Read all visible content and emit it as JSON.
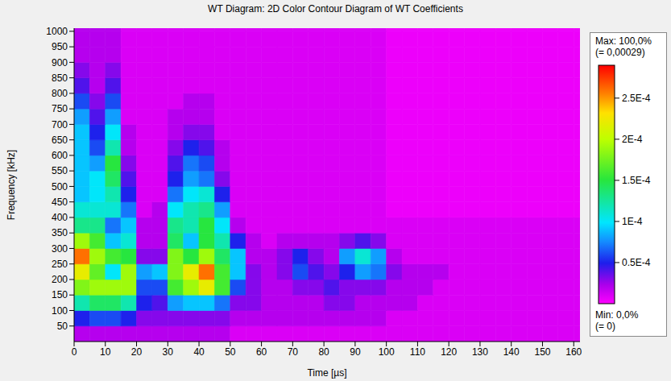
{
  "chart_data": {
    "type": "heatmap",
    "title": "WT Diagram: 2D Color Contour Diagram of WT Coefficients",
    "x_label": "Time [µs]",
    "y_label": "Frequency [kHz]",
    "xlim": [
      0,
      162
    ],
    "ylim": [
      0,
      1010
    ],
    "xticks": [
      0,
      10,
      20,
      30,
      40,
      50,
      60,
      70,
      80,
      90,
      100,
      110,
      120,
      130,
      140,
      150,
      160
    ],
    "yticks": [
      50,
      100,
      150,
      200,
      250,
      300,
      350,
      400,
      450,
      500,
      550,
      600,
      650,
      700,
      750,
      800,
      850,
      900,
      950,
      1000
    ],
    "grid": false,
    "cells": {
      "x": [
        0,
        5,
        10,
        15,
        20,
        25,
        30,
        35,
        40,
        45,
        50,
        55,
        60,
        65,
        70,
        75,
        80,
        85,
        90,
        95,
        100,
        105,
        110,
        115,
        120,
        125,
        130,
        135,
        140,
        145,
        150,
        155,
        160,
        165
      ],
      "y": [
        0,
        50,
        100,
        150,
        200,
        250,
        300,
        350,
        400,
        450,
        500,
        550,
        600,
        650,
        700,
        750,
        800,
        850,
        900,
        950,
        1000,
        1050
      ],
      "values": [
        [
          2e-05,
          2e-05,
          2e-05,
          2e-05,
          2e-05,
          2e-05,
          2e-05,
          2e-05,
          2e-05,
          2e-05,
          1e-05,
          1e-05,
          1e-05,
          1e-05,
          1e-05,
          1e-05,
          1e-05,
          1e-05,
          1e-05,
          1e-05,
          1e-05,
          1e-05,
          1e-05,
          1e-05,
          1e-05,
          1e-05,
          1e-05,
          1e-05,
          1e-05,
          1e-05,
          1e-05,
          1e-05,
          1e-05
        ],
        [
          5e-05,
          6e-05,
          6e-05,
          5e-05,
          3e-05,
          3e-05,
          3e-05,
          3e-05,
          3e-05,
          3e-05,
          2e-05,
          2e-05,
          2e-05,
          2e-05,
          2e-05,
          2e-05,
          2e-05,
          2e-05,
          2e-05,
          2e-05,
          1e-05,
          1e-05,
          1e-05,
          1e-05,
          1e-05,
          1e-05,
          1e-05,
          1e-05,
          1e-05,
          1e-05,
          1e-05,
          1e-05,
          1e-05
        ],
        [
          0.00012,
          0.00014,
          0.00014,
          0.00012,
          5e-05,
          4e-05,
          8e-05,
          9e-05,
          9e-05,
          7e-05,
          3e-05,
          3e-05,
          2e-05,
          2e-05,
          2e-05,
          2e-05,
          3e-05,
          3e-05,
          2e-05,
          2e-05,
          2e-05,
          2e-05,
          1e-05,
          1e-05,
          1e-05,
          1e-05,
          1e-05,
          1e-05,
          1e-05,
          1e-05,
          1e-05,
          1e-05,
          1e-05
        ],
        [
          0.00018,
          0.00019,
          0.00019,
          0.00019,
          6e-05,
          6e-05,
          0.00016,
          0.00019,
          0.00022,
          0.00016,
          6e-05,
          3e-05,
          2e-05,
          2e-05,
          3e-05,
          3e-05,
          4e-05,
          3e-05,
          3e-05,
          3e-05,
          2e-05,
          2e-05,
          2e-05,
          1e-05,
          1e-05,
          1e-05,
          1e-05,
          1e-05,
          1e-05,
          1e-05,
          1e-05,
          1e-05,
          1e-05
        ],
        [
          0.00022,
          0.00017,
          0.0001,
          0.00019,
          8e-05,
          9e-05,
          0.00018,
          0.00022,
          0.00026,
          0.00016,
          9e-05,
          3e-05,
          2e-05,
          3e-05,
          6e-05,
          4e-05,
          3e-05,
          5e-05,
          8e-05,
          7e-05,
          3e-05,
          2e-05,
          2e-05,
          2e-05,
          1e-05,
          1e-05,
          1e-05,
          1e-05,
          1e-05,
          1e-05,
          1e-05,
          1e-05,
          1e-05
        ],
        [
          0.00026,
          0.00019,
          0.00016,
          0.00015,
          3e-05,
          3e-05,
          0.00018,
          0.00015,
          0.00019,
          0.00014,
          9e-05,
          2e-05,
          2e-05,
          3e-05,
          5e-05,
          3e-05,
          2e-05,
          8e-05,
          0.00011,
          8e-05,
          2e-05,
          1e-05,
          1e-05,
          1e-05,
          1e-05,
          1e-05,
          1e-05,
          1e-05,
          1e-05,
          1e-05,
          1e-05,
          1e-05,
          1e-05
        ],
        [
          0.00019,
          0.00016,
          9e-05,
          0.00011,
          2e-05,
          2e-05,
          0.00014,
          9e-05,
          0.00015,
          0.00012,
          5e-05,
          2e-05,
          1e-05,
          2e-05,
          2e-05,
          2e-05,
          2e-05,
          3e-05,
          4e-05,
          3e-05,
          1e-05,
          1e-05,
          1e-05,
          1e-05,
          1e-05,
          1e-05,
          1e-05,
          1e-05,
          1e-05,
          1e-05,
          1e-05,
          1e-05,
          1e-05
        ],
        [
          0.00013,
          0.00013,
          7e-05,
          9e-05,
          2e-05,
          2e-05,
          0.00013,
          0.00012,
          0.00015,
          0.0001,
          2e-05,
          1e-05,
          1e-05,
          1e-05,
          1e-05,
          1e-05,
          1e-05,
          1e-05,
          1e-05,
          1e-05,
          1e-05,
          1e-05,
          1e-05,
          1e-05,
          1e-05,
          1e-05,
          1e-05,
          1e-05,
          1e-05,
          1e-05,
          1e-05,
          1e-05,
          1e-05
        ],
        [
          0.00011,
          0.00011,
          0.00011,
          7e-05,
          1e-05,
          2e-05,
          0.0001,
          0.00012,
          0.00013,
          8e-05,
          1e-05,
          1e-05,
          1e-05,
          1e-05,
          1e-05,
          1e-05,
          1e-05,
          1e-05,
          1e-05,
          1e-05,
          5e-06,
          5e-06,
          5e-06,
          5e-06,
          5e-06,
          5e-06,
          5e-06,
          5e-06,
          5e-06,
          5e-06,
          5e-06,
          5e-06,
          5e-06
        ],
        [
          9e-05,
          0.0001,
          0.00012,
          5e-05,
          1e-05,
          1e-05,
          7e-05,
          0.0001,
          0.00011,
          5e-05,
          1e-05,
          1e-05,
          1e-05,
          1e-05,
          1e-05,
          1e-05,
          1e-05,
          1e-05,
          1e-05,
          1e-05,
          5e-06,
          5e-06,
          5e-06,
          5e-06,
          5e-06,
          5e-06,
          5e-06,
          5e-06,
          5e-06,
          5e-06,
          5e-06,
          5e-06,
          5e-06
        ],
        [
          9e-05,
          0.0001,
          0.00014,
          4e-05,
          1e-05,
          1e-05,
          5e-05,
          8e-05,
          7e-05,
          3e-05,
          1e-05,
          1e-05,
          1e-05,
          1e-05,
          1e-05,
          1e-05,
          1e-05,
          1e-05,
          1e-05,
          1e-05,
          5e-06,
          5e-06,
          5e-06,
          5e-06,
          5e-06,
          5e-06,
          5e-06,
          5e-06,
          5e-06,
          5e-06,
          5e-06,
          5e-06,
          5e-06
        ],
        [
          9e-05,
          8e-05,
          0.00015,
          3e-05,
          1e-05,
          1e-05,
          4e-05,
          7e-05,
          6e-05,
          2e-05,
          1e-05,
          1e-05,
          1e-05,
          1e-05,
          1e-05,
          1e-05,
          1e-05,
          1e-05,
          1e-05,
          1e-05,
          5e-06,
          5e-06,
          5e-06,
          5e-06,
          5e-06,
          5e-06,
          5e-06,
          5e-06,
          5e-06,
          5e-06,
          5e-06,
          5e-06,
          5e-06
        ],
        [
          9e-05,
          6e-05,
          0.00012,
          2e-05,
          1e-05,
          1e-05,
          3e-05,
          5e-05,
          4e-05,
          2e-05,
          1e-05,
          1e-05,
          1e-05,
          1e-05,
          1e-05,
          1e-05,
          1e-05,
          1e-05,
          1e-05,
          1e-05,
          5e-06,
          5e-06,
          5e-06,
          5e-06,
          5e-06,
          5e-06,
          5e-06,
          5e-06,
          5e-06,
          5e-06,
          5e-06,
          5e-06,
          5e-06
        ],
        [
          9e-05,
          5e-05,
          0.0001,
          2e-05,
          1e-05,
          1e-05,
          2e-05,
          3e-05,
          3e-05,
          1e-05,
          1e-05,
          1e-05,
          1e-05,
          1e-05,
          1e-05,
          1e-05,
          1e-05,
          1e-05,
          1e-05,
          1e-05,
          5e-06,
          5e-06,
          5e-06,
          5e-06,
          5e-06,
          5e-06,
          5e-06,
          5e-06,
          5e-06,
          5e-06,
          5e-06,
          5e-06,
          5e-06
        ],
        [
          8e-05,
          4e-05,
          8e-05,
          1e-05,
          1e-05,
          1e-05,
          2e-05,
          2e-05,
          2e-05,
          1e-05,
          1e-05,
          1e-05,
          1e-05,
          1e-05,
          1e-05,
          1e-05,
          1e-05,
          1e-05,
          1e-05,
          1e-05,
          5e-06,
          5e-06,
          5e-06,
          5e-06,
          5e-06,
          5e-06,
          5e-06,
          5e-06,
          5e-06,
          5e-06,
          5e-06,
          5e-06,
          5e-06
        ],
        [
          6e-05,
          3e-05,
          6e-05,
          1e-05,
          1e-05,
          1e-05,
          1e-05,
          2e-05,
          2e-05,
          1e-05,
          1e-05,
          1e-05,
          1e-05,
          1e-05,
          1e-05,
          1e-05,
          1e-05,
          1e-05,
          1e-05,
          1e-05,
          5e-06,
          5e-06,
          5e-06,
          5e-06,
          5e-06,
          5e-06,
          5e-06,
          5e-06,
          5e-06,
          5e-06,
          5e-06,
          5e-06,
          5e-06
        ],
        [
          4e-05,
          2e-05,
          4e-05,
          1e-05,
          1e-05,
          1e-05,
          1e-05,
          1e-05,
          1e-05,
          1e-05,
          1e-05,
          1e-05,
          1e-05,
          1e-05,
          1e-05,
          1e-05,
          1e-05,
          1e-05,
          1e-05,
          1e-05,
          5e-06,
          5e-06,
          5e-06,
          5e-06,
          5e-06,
          5e-06,
          5e-06,
          5e-06,
          5e-06,
          5e-06,
          5e-06,
          5e-06,
          5e-06
        ],
        [
          3e-05,
          2e-05,
          3e-05,
          1e-05,
          1e-05,
          1e-05,
          1e-05,
          1e-05,
          1e-05,
          1e-05,
          1e-05,
          1e-05,
          1e-05,
          1e-05,
          1e-05,
          1e-05,
          1e-05,
          1e-05,
          1e-05,
          1e-05,
          5e-06,
          5e-06,
          5e-06,
          5e-06,
          5e-06,
          5e-06,
          5e-06,
          5e-06,
          5e-06,
          5e-06,
          5e-06,
          5e-06,
          5e-06
        ],
        [
          2e-05,
          2e-05,
          2e-05,
          1e-05,
          1e-05,
          1e-05,
          1e-05,
          1e-05,
          1e-05,
          1e-05,
          1e-05,
          1e-05,
          1e-05,
          1e-05,
          1e-05,
          1e-05,
          1e-05,
          1e-05,
          1e-05,
          1e-05,
          5e-06,
          5e-06,
          5e-06,
          5e-06,
          5e-06,
          5e-06,
          5e-06,
          5e-06,
          5e-06,
          5e-06,
          5e-06,
          5e-06,
          5e-06
        ],
        [
          2e-05,
          2e-05,
          2e-05,
          1e-05,
          1e-05,
          1e-05,
          1e-05,
          1e-05,
          1e-05,
          1e-05,
          1e-05,
          1e-05,
          1e-05,
          1e-05,
          1e-05,
          1e-05,
          1e-05,
          1e-05,
          1e-05,
          1e-05,
          5e-06,
          5e-06,
          5e-06,
          5e-06,
          5e-06,
          5e-06,
          5e-06,
          5e-06,
          5e-06,
          5e-06,
          5e-06,
          5e-06,
          5e-06
        ],
        [
          2e-05,
          2e-05,
          2e-05,
          1e-05,
          1e-05,
          1e-05,
          1e-05,
          1e-05,
          1e-05,
          1e-05,
          1e-05,
          1e-05,
          1e-05,
          1e-05,
          1e-05,
          1e-05,
          1e-05,
          1e-05,
          1e-05,
          1e-05,
          5e-06,
          5e-06,
          5e-06,
          5e-06,
          5e-06,
          5e-06,
          5e-06,
          5e-06,
          5e-06,
          5e-06,
          5e-06,
          5e-06,
          5e-06
        ]
      ]
    },
    "colorbar": {
      "range": [
        0,
        0.00029
      ],
      "ticks": [
        {
          "value": 5e-05,
          "label": "0.5E-4"
        },
        {
          "value": 0.0001,
          "label": "1E-4"
        },
        {
          "value": 0.00015,
          "label": "1.5E-4"
        },
        {
          "value": 0.0002,
          "label": "2E-4"
        },
        {
          "value": 0.00025,
          "label": "2.5E-4"
        }
      ],
      "max_text": [
        "Max: 100,0%",
        "(= 0,00029)"
      ],
      "min_text": [
        "Min: 0,0%",
        "(= 0)"
      ]
    }
  }
}
